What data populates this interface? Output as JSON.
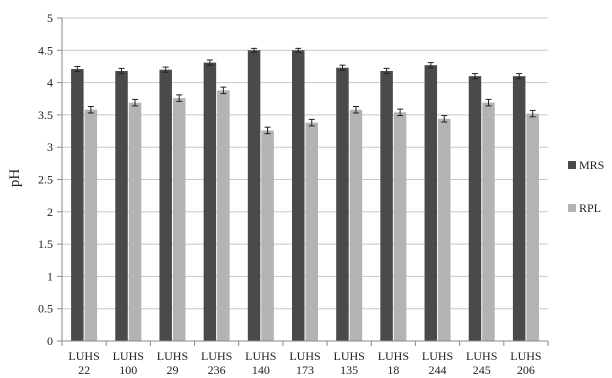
{
  "chart_data": {
    "type": "bar",
    "title": "",
    "xlabel": "",
    "ylabel": "pH",
    "ylim": [
      0,
      5
    ],
    "yticks": [
      "0",
      "0.5",
      "1",
      "1.5",
      "2",
      "2.5",
      "3",
      "3.5",
      "4",
      "4.5",
      "5"
    ],
    "grid": true,
    "legend_position": "right",
    "categories": [
      [
        "LUHS",
        "22"
      ],
      [
        "LUHS",
        "100"
      ],
      [
        "LUHS",
        "29"
      ],
      [
        "LUHS",
        "236"
      ],
      [
        "LUHS",
        "140"
      ],
      [
        "LUHS",
        "173"
      ],
      [
        "LUHS",
        "135"
      ],
      [
        "LUHS",
        "18"
      ],
      [
        "LUHS",
        "244"
      ],
      [
        "LUHS",
        "245"
      ],
      [
        "LUHS",
        "206"
      ]
    ],
    "series": [
      {
        "name": "MRS",
        "color": "#4a4a4a",
        "values": [
          4.21,
          4.18,
          4.2,
          4.31,
          4.5,
          4.5,
          4.23,
          4.18,
          4.27,
          4.1,
          4.1
        ],
        "errors": [
          0.04,
          0.04,
          0.04,
          0.04,
          0.03,
          0.03,
          0.04,
          0.04,
          0.04,
          0.04,
          0.04
        ]
      },
      {
        "name": "RPL",
        "color": "#b3b3b3",
        "values": [
          3.58,
          3.69,
          3.76,
          3.88,
          3.26,
          3.38,
          3.58,
          3.54,
          3.44,
          3.69,
          3.52
        ],
        "errors": [
          0.05,
          0.05,
          0.05,
          0.05,
          0.05,
          0.05,
          0.05,
          0.05,
          0.05,
          0.05,
          0.05
        ]
      }
    ]
  }
}
